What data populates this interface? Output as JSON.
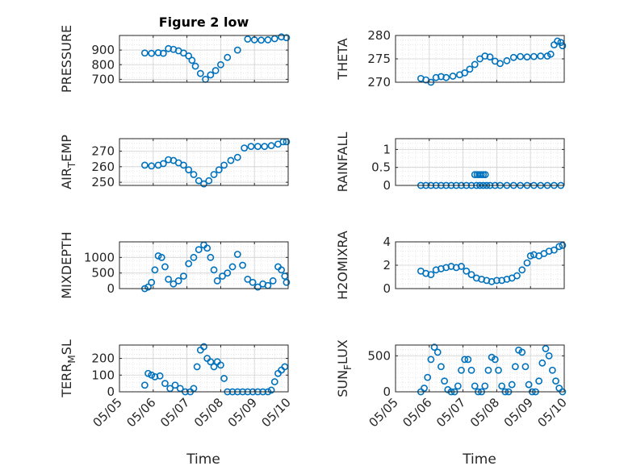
{
  "chart_data": [
    {
      "type": "scatter",
      "title": "Figure 2 low",
      "ylabel": "PRESSURE",
      "ylabel_sub": "",
      "ylabel_post": "",
      "xlim": [
        0,
        5
      ],
      "ylim": [
        680,
        1000
      ],
      "yticks": [
        700,
        800,
        900
      ],
      "xticks": [
        0,
        1,
        2,
        3,
        4,
        5
      ],
      "x": [
        0.75,
        0.95,
        1.15,
        1.3,
        1.45,
        1.6,
        1.75,
        1.9,
        2.05,
        2.15,
        2.25,
        2.4,
        2.55,
        2.7,
        2.85,
        3.0,
        3.2,
        3.5,
        3.8,
        4.0,
        4.2,
        4.4,
        4.6,
        4.8,
        4.95
      ],
      "y": [
        880,
        878,
        882,
        878,
        910,
        905,
        895,
        880,
        860,
        830,
        790,
        740,
        700,
        730,
        760,
        800,
        850,
        900,
        975,
        970,
        968,
        970,
        978,
        990,
        985
      ],
      "color": "#0072BD"
    },
    {
      "type": "scatter",
      "title": "",
      "ylabel": "THETA",
      "ylabel_sub": "",
      "ylabel_post": "",
      "xlim": [
        0,
        5
      ],
      "ylim": [
        270,
        280
      ],
      "yticks": [
        270,
        275,
        280
      ],
      "xticks": [
        0,
        1,
        2,
        3,
        4,
        5
      ],
      "x": [
        0.75,
        0.9,
        1.05,
        1.2,
        1.35,
        1.5,
        1.7,
        1.9,
        2.05,
        2.2,
        2.35,
        2.5,
        2.65,
        2.8,
        2.95,
        3.1,
        3.3,
        3.5,
        3.7,
        3.9,
        4.1,
        4.3,
        4.5,
        4.6,
        4.7,
        4.8,
        4.9,
        4.95
      ],
      "y": [
        270.8,
        270.5,
        270,
        271,
        271.2,
        271,
        271.3,
        271.6,
        272,
        272.8,
        273.8,
        275,
        275.6,
        275.4,
        274.5,
        274,
        274.6,
        275.3,
        275.5,
        275.4,
        275.5,
        275.6,
        275.6,
        276,
        278,
        278.8,
        278.5,
        277.8
      ],
      "color": "#0072BD"
    },
    {
      "type": "scatter",
      "title": "",
      "ylabel": "AIR",
      "ylabel_sub": "T",
      "ylabel_post": "EMP",
      "xlim": [
        0,
        5
      ],
      "ylim": [
        248,
        278
      ],
      "yticks": [
        250,
        260,
        270
      ],
      "xticks": [
        0,
        1,
        2,
        3,
        4,
        5
      ],
      "x": [
        0.75,
        0.95,
        1.15,
        1.3,
        1.45,
        1.6,
        1.75,
        1.9,
        2.05,
        2.2,
        2.35,
        2.5,
        2.65,
        2.8,
        2.95,
        3.1,
        3.3,
        3.5,
        3.7,
        3.9,
        4.1,
        4.3,
        4.5,
        4.7,
        4.85,
        4.95
      ],
      "y": [
        261,
        260.5,
        261,
        262,
        264.5,
        264,
        262.5,
        261,
        258,
        255,
        251,
        249,
        251,
        255,
        258,
        261,
        264,
        266,
        272,
        273,
        273,
        273,
        273.5,
        274.5,
        276,
        276
      ],
      "color": "#0072BD"
    },
    {
      "type": "scatter",
      "title": "",
      "ylabel": "RAINFALL",
      "ylabel_sub": "",
      "ylabel_post": "",
      "xlim": [
        0,
        5
      ],
      "ylim": [
        0,
        1.3
      ],
      "yticks": [
        0,
        0.5,
        1
      ],
      "xticks": [
        0,
        1,
        2,
        3,
        4,
        5
      ],
      "x": [
        0.75,
        0.9,
        1.05,
        1.2,
        1.35,
        1.5,
        1.65,
        1.8,
        1.95,
        2.1,
        2.25,
        2.4,
        2.5,
        2.6,
        2.7,
        2.8,
        2.95,
        3.1,
        3.3,
        3.5,
        3.7,
        3.9,
        4.1,
        4.3,
        4.5,
        4.7,
        4.9,
        2.35,
        2.42,
        2.48,
        2.54,
        2.6,
        2.66
      ],
      "y": [
        0,
        0,
        0,
        0,
        0,
        0,
        0,
        0,
        0,
        0,
        0,
        0,
        0,
        0,
        0,
        0,
        0,
        0,
        0,
        0,
        0,
        0,
        0,
        0,
        0,
        0,
        0,
        0.3,
        0.3,
        0.3,
        0.3,
        0.3,
        0.3
      ],
      "color": "#0072BD"
    },
    {
      "type": "scatter",
      "title": "",
      "ylabel": "MIXDEPTH",
      "ylabel_sub": "",
      "ylabel_post": "",
      "xlim": [
        0,
        5
      ],
      "ylim": [
        0,
        1500
      ],
      "yticks": [
        0,
        500,
        1000
      ],
      "xticks": [
        0,
        1,
        2,
        3,
        4,
        5
      ],
      "x": [
        0.75,
        0.85,
        0.95,
        1.05,
        1.15,
        1.25,
        1.35,
        1.45,
        1.6,
        1.75,
        1.9,
        2.05,
        2.2,
        2.35,
        2.5,
        2.6,
        2.7,
        2.8,
        2.9,
        3.05,
        3.2,
        3.35,
        3.5,
        3.65,
        3.8,
        3.95,
        4.1,
        4.25,
        4.4,
        4.55,
        4.7,
        4.8,
        4.9,
        4.95
      ],
      "y": [
        0,
        50,
        200,
        600,
        1050,
        1000,
        700,
        300,
        150,
        250,
        400,
        800,
        1000,
        1250,
        1400,
        1300,
        1000,
        600,
        250,
        400,
        500,
        700,
        1100,
        750,
        300,
        200,
        50,
        150,
        100,
        250,
        700,
        600,
        400,
        200
      ],
      "color": "#0072BD"
    },
    {
      "type": "scatter",
      "title": "",
      "ylabel": "H2OMIXRA",
      "ylabel_sub": "",
      "ylabel_post": "",
      "xlim": [
        0,
        5
      ],
      "ylim": [
        0,
        4
      ],
      "yticks": [
        0,
        2,
        4
      ],
      "xticks": [
        0,
        1,
        2,
        3,
        4,
        5
      ],
      "x": [
        0.75,
        0.9,
        1.05,
        1.2,
        1.35,
        1.5,
        1.65,
        1.8,
        1.95,
        2.1,
        2.25,
        2.4,
        2.55,
        2.7,
        2.85,
        3.0,
        3.15,
        3.3,
        3.45,
        3.6,
        3.75,
        3.9,
        4.0,
        4.1,
        4.25,
        4.4,
        4.55,
        4.7,
        4.85,
        4.95
      ],
      "y": [
        1.5,
        1.3,
        1.2,
        1.6,
        1.7,
        1.8,
        1.9,
        1.8,
        1.9,
        1.5,
        1.2,
        0.9,
        0.8,
        0.7,
        0.6,
        0.7,
        0.7,
        0.8,
        0.9,
        1.1,
        1.6,
        2.2,
        2.8,
        2.9,
        2.8,
        3.0,
        3.2,
        3.3,
        3.6,
        3.7
      ],
      "color": "#0072BD"
    },
    {
      "type": "scatter",
      "title": "",
      "ylabel": "TERR",
      "ylabel_sub": "M",
      "ylabel_post": "SL",
      "xlim": [
        0,
        5
      ],
      "ylim": [
        0,
        280
      ],
      "yticks": [
        0,
        100,
        200
      ],
      "xticks": [
        0,
        1,
        2,
        3,
        4,
        5
      ],
      "x": [
        0.75,
        0.85,
        0.95,
        1.05,
        1.2,
        1.35,
        1.5,
        1.65,
        1.8,
        1.95,
        2.1,
        2.2,
        2.3,
        2.4,
        2.5,
        2.6,
        2.7,
        2.8,
        2.9,
        3.0,
        3.1,
        3.2,
        3.35,
        3.5,
        3.65,
        3.8,
        3.95,
        4.1,
        4.25,
        4.4,
        4.5,
        4.6,
        4.7,
        4.8,
        4.9
      ],
      "y": [
        40,
        110,
        100,
        90,
        95,
        50,
        20,
        40,
        20,
        0,
        0,
        20,
        150,
        250,
        270,
        200,
        180,
        150,
        180,
        160,
        80,
        0,
        0,
        0,
        0,
        0,
        0,
        0,
        0,
        0,
        10,
        60,
        110,
        130,
        150
      ],
      "color": "#0072BD"
    },
    {
      "type": "scatter",
      "title": "",
      "ylabel": "SUN",
      "ylabel_sub": "F",
      "ylabel_post": "LUX",
      "xlim": [
        0,
        5
      ],
      "ylim": [
        0,
        650
      ],
      "yticks": [
        0,
        500
      ],
      "xticks": [
        0,
        1,
        2,
        3,
        4,
        5
      ],
      "x": [
        0.75,
        0.85,
        0.95,
        1.05,
        1.15,
        1.25,
        1.35,
        1.45,
        1.55,
        1.65,
        1.75,
        1.85,
        1.95,
        2.05,
        2.15,
        2.25,
        2.35,
        2.45,
        2.55,
        2.65,
        2.75,
        2.85,
        2.95,
        3.05,
        3.15,
        3.25,
        3.35,
        3.45,
        3.55,
        3.65,
        3.75,
        3.85,
        3.95,
        4.05,
        4.15,
        4.25,
        4.35,
        4.45,
        4.55,
        4.65,
        4.75,
        4.85,
        4.95
      ],
      "y": [
        0,
        50,
        200,
        450,
        620,
        550,
        350,
        150,
        30,
        0,
        0,
        80,
        300,
        450,
        450,
        300,
        80,
        0,
        0,
        80,
        300,
        480,
        450,
        300,
        80,
        0,
        0,
        100,
        350,
        580,
        550,
        350,
        100,
        0,
        0,
        150,
        400,
        600,
        500,
        300,
        150,
        50,
        0
      ],
      "color": "#0072BD"
    }
  ],
  "xtick_labels": [
    "05/05",
    "05/06",
    "05/07",
    "05/08",
    "05/09",
    "05/10"
  ],
  "xlabel": "Time"
}
